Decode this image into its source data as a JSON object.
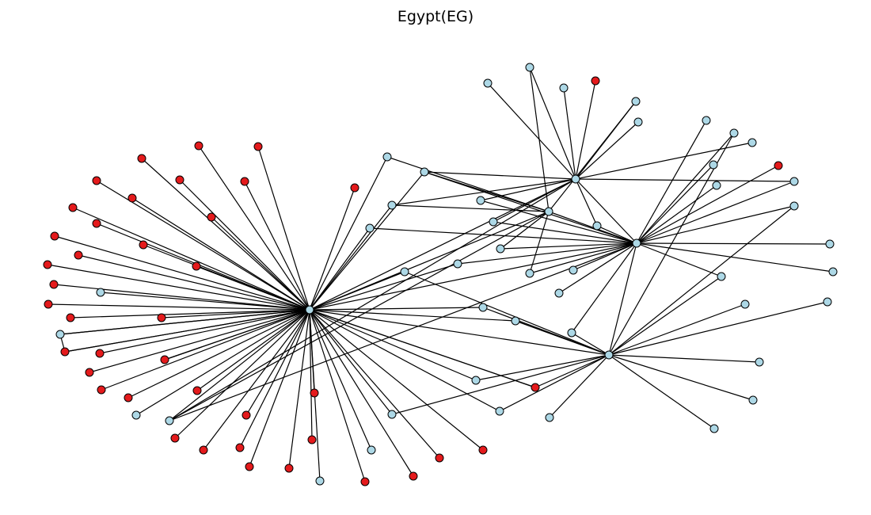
{
  "title": "Egypt(EG)",
  "colors": {
    "red_node": "#e41a1c",
    "blue_node": "#add8e6",
    "edge": "#000000",
    "node_stroke": "#000000",
    "background": "#ffffff"
  },
  "graph": {
    "hub_node": "H",
    "node_groups": {
      "H": "blue",
      "A": "blue",
      "B": "blue",
      "C": "blue",
      "D": "blue",
      "r1": "red",
      "r2": "red",
      "r3": "red",
      "r4": "red",
      "r5": "red",
      "r6": "red",
      "r7": "red",
      "r8": "red",
      "r9": "red",
      "r10": "red",
      "r11": "red",
      "r12": "red",
      "r13": "red",
      "r14": "red",
      "r15": "red",
      "r16": "red",
      "r17": "red",
      "r18": "red",
      "r19": "red",
      "r20": "red",
      "r21": "red",
      "r22": "red",
      "r23": "red",
      "r24": "red",
      "r25": "red",
      "r26": "red",
      "r27": "red",
      "r28": "red",
      "r29": "red",
      "r30": "red",
      "r31": "red",
      "r32": "red",
      "r33": "red",
      "r34": "red",
      "r35": "red",
      "r36": "red",
      "r37": "red",
      "r38": "red",
      "r39": "red",
      "r40": "red",
      "r41": "red",
      "r42": "red",
      "r43": "red",
      "r44": "red",
      "b1": "blue",
      "b2": "blue",
      "b3": "blue",
      "b4": "blue",
      "b5": "blue",
      "b6": "blue",
      "b7": "blue",
      "b8": "blue",
      "b9": "blue",
      "b10": "blue",
      "b11": "blue",
      "b12": "blue",
      "b13": "blue",
      "b14": "blue",
      "b15": "blue",
      "b16": "blue",
      "b17": "blue",
      "b18": "blue",
      "b19": "blue",
      "b20": "blue",
      "b21": "blue",
      "b22": "blue",
      "b23": "blue",
      "b24": "blue",
      "b25": "blue",
      "b26": "blue",
      "b27": "blue",
      "b28": "blue",
      "b29": "blue",
      "b30": "blue",
      "b31": "blue",
      "b32": "blue",
      "b33": "blue",
      "b34": "blue",
      "b35": "blue",
      "b36": "blue",
      "b37": "blue",
      "b38": "blue",
      "b39": "blue",
      "b40": "blue",
      "b41": "blue",
      "b42": "blue",
      "b43": "blue",
      "b44": "blue"
    },
    "edges": [
      [
        "H",
        "r1"
      ],
      [
        "H",
        "r2"
      ],
      [
        "H",
        "r3"
      ],
      [
        "H",
        "r4"
      ],
      [
        "H",
        "r5"
      ],
      [
        "H",
        "r6"
      ],
      [
        "H",
        "r7"
      ],
      [
        "H",
        "r8"
      ],
      [
        "H",
        "r9"
      ],
      [
        "H",
        "r10"
      ],
      [
        "H",
        "r11"
      ],
      [
        "H",
        "r12"
      ],
      [
        "H",
        "r13"
      ],
      [
        "H",
        "r14"
      ],
      [
        "H",
        "r15"
      ],
      [
        "H",
        "r16"
      ],
      [
        "H",
        "r17"
      ],
      [
        "H",
        "r18"
      ],
      [
        "H",
        "r19"
      ],
      [
        "H",
        "r20"
      ],
      [
        "H",
        "r21"
      ],
      [
        "H",
        "r22"
      ],
      [
        "H",
        "r23"
      ],
      [
        "H",
        "r24"
      ],
      [
        "H",
        "r25"
      ],
      [
        "H",
        "r26"
      ],
      [
        "H",
        "r27"
      ],
      [
        "H",
        "r28"
      ],
      [
        "H",
        "r29"
      ],
      [
        "H",
        "r30"
      ],
      [
        "H",
        "r31"
      ],
      [
        "H",
        "r32"
      ],
      [
        "H",
        "r33"
      ],
      [
        "H",
        "r34"
      ],
      [
        "H",
        "r35"
      ],
      [
        "H",
        "r36"
      ],
      [
        "H",
        "r37"
      ],
      [
        "H",
        "r38"
      ],
      [
        "H",
        "r39"
      ],
      [
        "H",
        "r40"
      ],
      [
        "H",
        "r41"
      ],
      [
        "H",
        "r42"
      ],
      [
        "H",
        "b1"
      ],
      [
        "H",
        "b2"
      ],
      [
        "H",
        "b3"
      ],
      [
        "H",
        "b4"
      ],
      [
        "H",
        "b5"
      ],
      [
        "H",
        "b6"
      ],
      [
        "H",
        "b7"
      ],
      [
        "H",
        "b8"
      ],
      [
        "H",
        "b9"
      ],
      [
        "H",
        "b10"
      ],
      [
        "H",
        "b11"
      ],
      [
        "H",
        "b12"
      ],
      [
        "H",
        "b13"
      ],
      [
        "H",
        "b14"
      ],
      [
        "H",
        "b15"
      ],
      [
        "H",
        "b16"
      ],
      [
        "H",
        "b17"
      ],
      [
        "H",
        "b18"
      ],
      [
        "H",
        "b19"
      ],
      [
        "H",
        "A"
      ],
      [
        "H",
        "B"
      ],
      [
        "H",
        "C"
      ],
      [
        "H",
        "D"
      ],
      [
        "b3",
        "b4"
      ],
      [
        "A",
        "b20"
      ],
      [
        "A",
        "b21"
      ],
      [
        "A",
        "b22"
      ],
      [
        "A",
        "b23"
      ],
      [
        "A",
        "r43"
      ],
      [
        "A",
        "b24"
      ],
      [
        "A",
        "b25"
      ],
      [
        "A",
        "b26"
      ],
      [
        "A",
        "b6"
      ],
      [
        "A",
        "b12"
      ],
      [
        "A",
        "b27"
      ],
      [
        "A",
        "b11"
      ],
      [
        "A",
        "b28"
      ],
      [
        "A",
        "b29"
      ],
      [
        "A",
        "B"
      ],
      [
        "B",
        "b6"
      ],
      [
        "B",
        "b30"
      ],
      [
        "B",
        "b31"
      ],
      [
        "B",
        "b32"
      ],
      [
        "B",
        "b33"
      ],
      [
        "B",
        "r44"
      ],
      [
        "B",
        "b34"
      ],
      [
        "B",
        "b35"
      ],
      [
        "B",
        "b26"
      ],
      [
        "B",
        "b27"
      ],
      [
        "B",
        "b36"
      ],
      [
        "B",
        "b37"
      ],
      [
        "B",
        "b38"
      ],
      [
        "B",
        "b29"
      ],
      [
        "B",
        "b13"
      ],
      [
        "B",
        "b17"
      ],
      [
        "B",
        "b28"
      ],
      [
        "B",
        "b11"
      ],
      [
        "B",
        "b39"
      ],
      [
        "B",
        "b40"
      ],
      [
        "B",
        "C"
      ],
      [
        "B",
        "D"
      ],
      [
        "B",
        "b41"
      ],
      [
        "B",
        "b42"
      ],
      [
        "C",
        "b10"
      ],
      [
        "C",
        "b21"
      ],
      [
        "C",
        "b23"
      ],
      [
        "C",
        "b6"
      ],
      [
        "C",
        "b11"
      ],
      [
        "C",
        "b40"
      ],
      [
        "C",
        "b12"
      ],
      [
        "C",
        "b36"
      ],
      [
        "D",
        "b15"
      ],
      [
        "D",
        "b16"
      ],
      [
        "D",
        "r42"
      ],
      [
        "D",
        "b43"
      ],
      [
        "D",
        "b14"
      ],
      [
        "D",
        "b44"
      ],
      [
        "D",
        "b39"
      ],
      [
        "D",
        "b41"
      ],
      [
        "D",
        "b18"
      ],
      [
        "D",
        "b19"
      ],
      [
        "D",
        "b9"
      ],
      [
        "D",
        "b34"
      ],
      [
        "D",
        "b31"
      ]
    ]
  }
}
